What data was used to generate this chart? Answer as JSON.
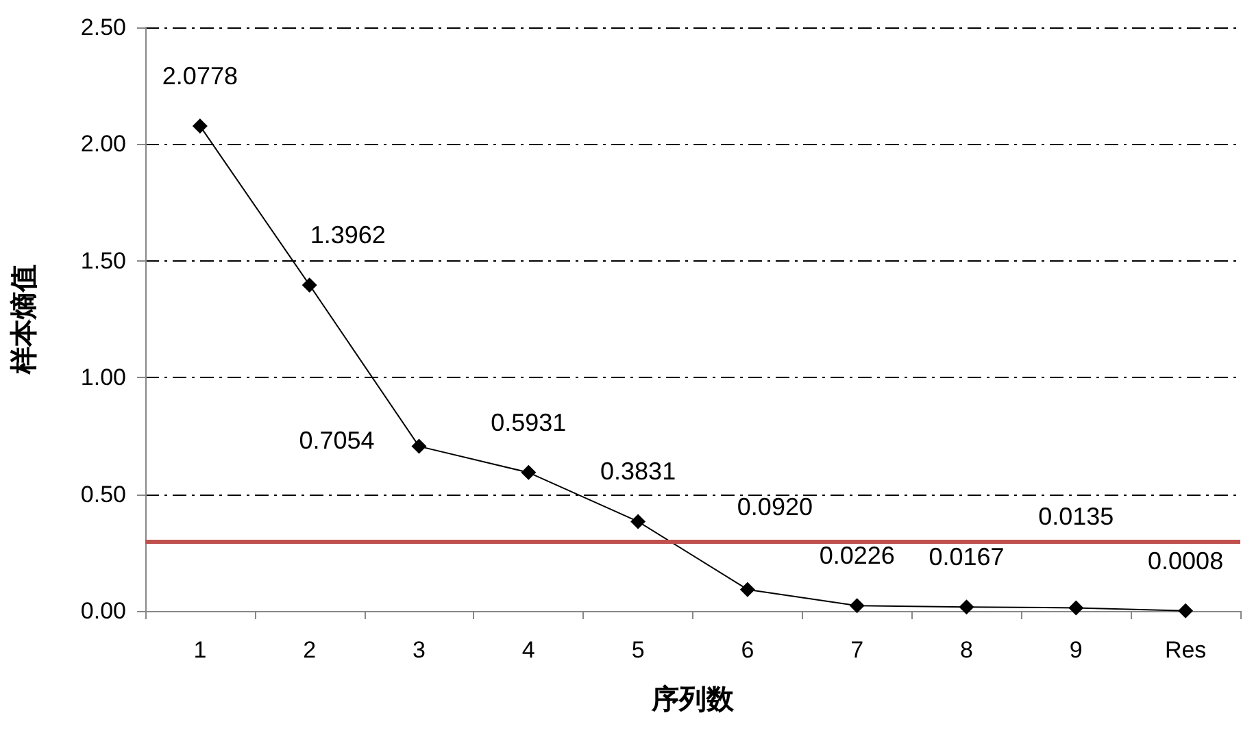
{
  "chart_data": {
    "type": "line",
    "xlabel": "序列数",
    "ylabel": "样本熵值",
    "categories": [
      "1",
      "2",
      "3",
      "4",
      "5",
      "6",
      "7",
      "8",
      "9",
      "Res"
    ],
    "series": [
      {
        "color": "#000000",
        "values": [
          2.0778,
          1.3962,
          0.7054,
          0.5931,
          0.3831,
          0.092,
          0.0226,
          0.0167,
          0.0135,
          0.0008
        ],
        "value_labels": [
          "2.0778",
          "1.3962",
          "0.7054",
          "0.5931",
          "0.3831",
          "0.0920",
          "0.0226",
          "0.0167",
          "0.0135",
          "0.0008"
        ]
      }
    ],
    "ylim": [
      0,
      2.5
    ],
    "yticks": [
      {
        "value": 0,
        "label": "0.00"
      },
      {
        "value": 0.5,
        "label": "0.50"
      },
      {
        "value": 1,
        "label": "1.00"
      },
      {
        "value": 1.5,
        "label": "1.50"
      },
      {
        "value": 2,
        "label": "2.00"
      },
      {
        "value": 2.5,
        "label": "2.50"
      }
    ],
    "grid": "y",
    "marker": "diamond",
    "line_style": "solid",
    "ref_lines": [
      {
        "axis": "y",
        "value": 0.3,
        "color": "#c0504d"
      }
    ]
  }
}
